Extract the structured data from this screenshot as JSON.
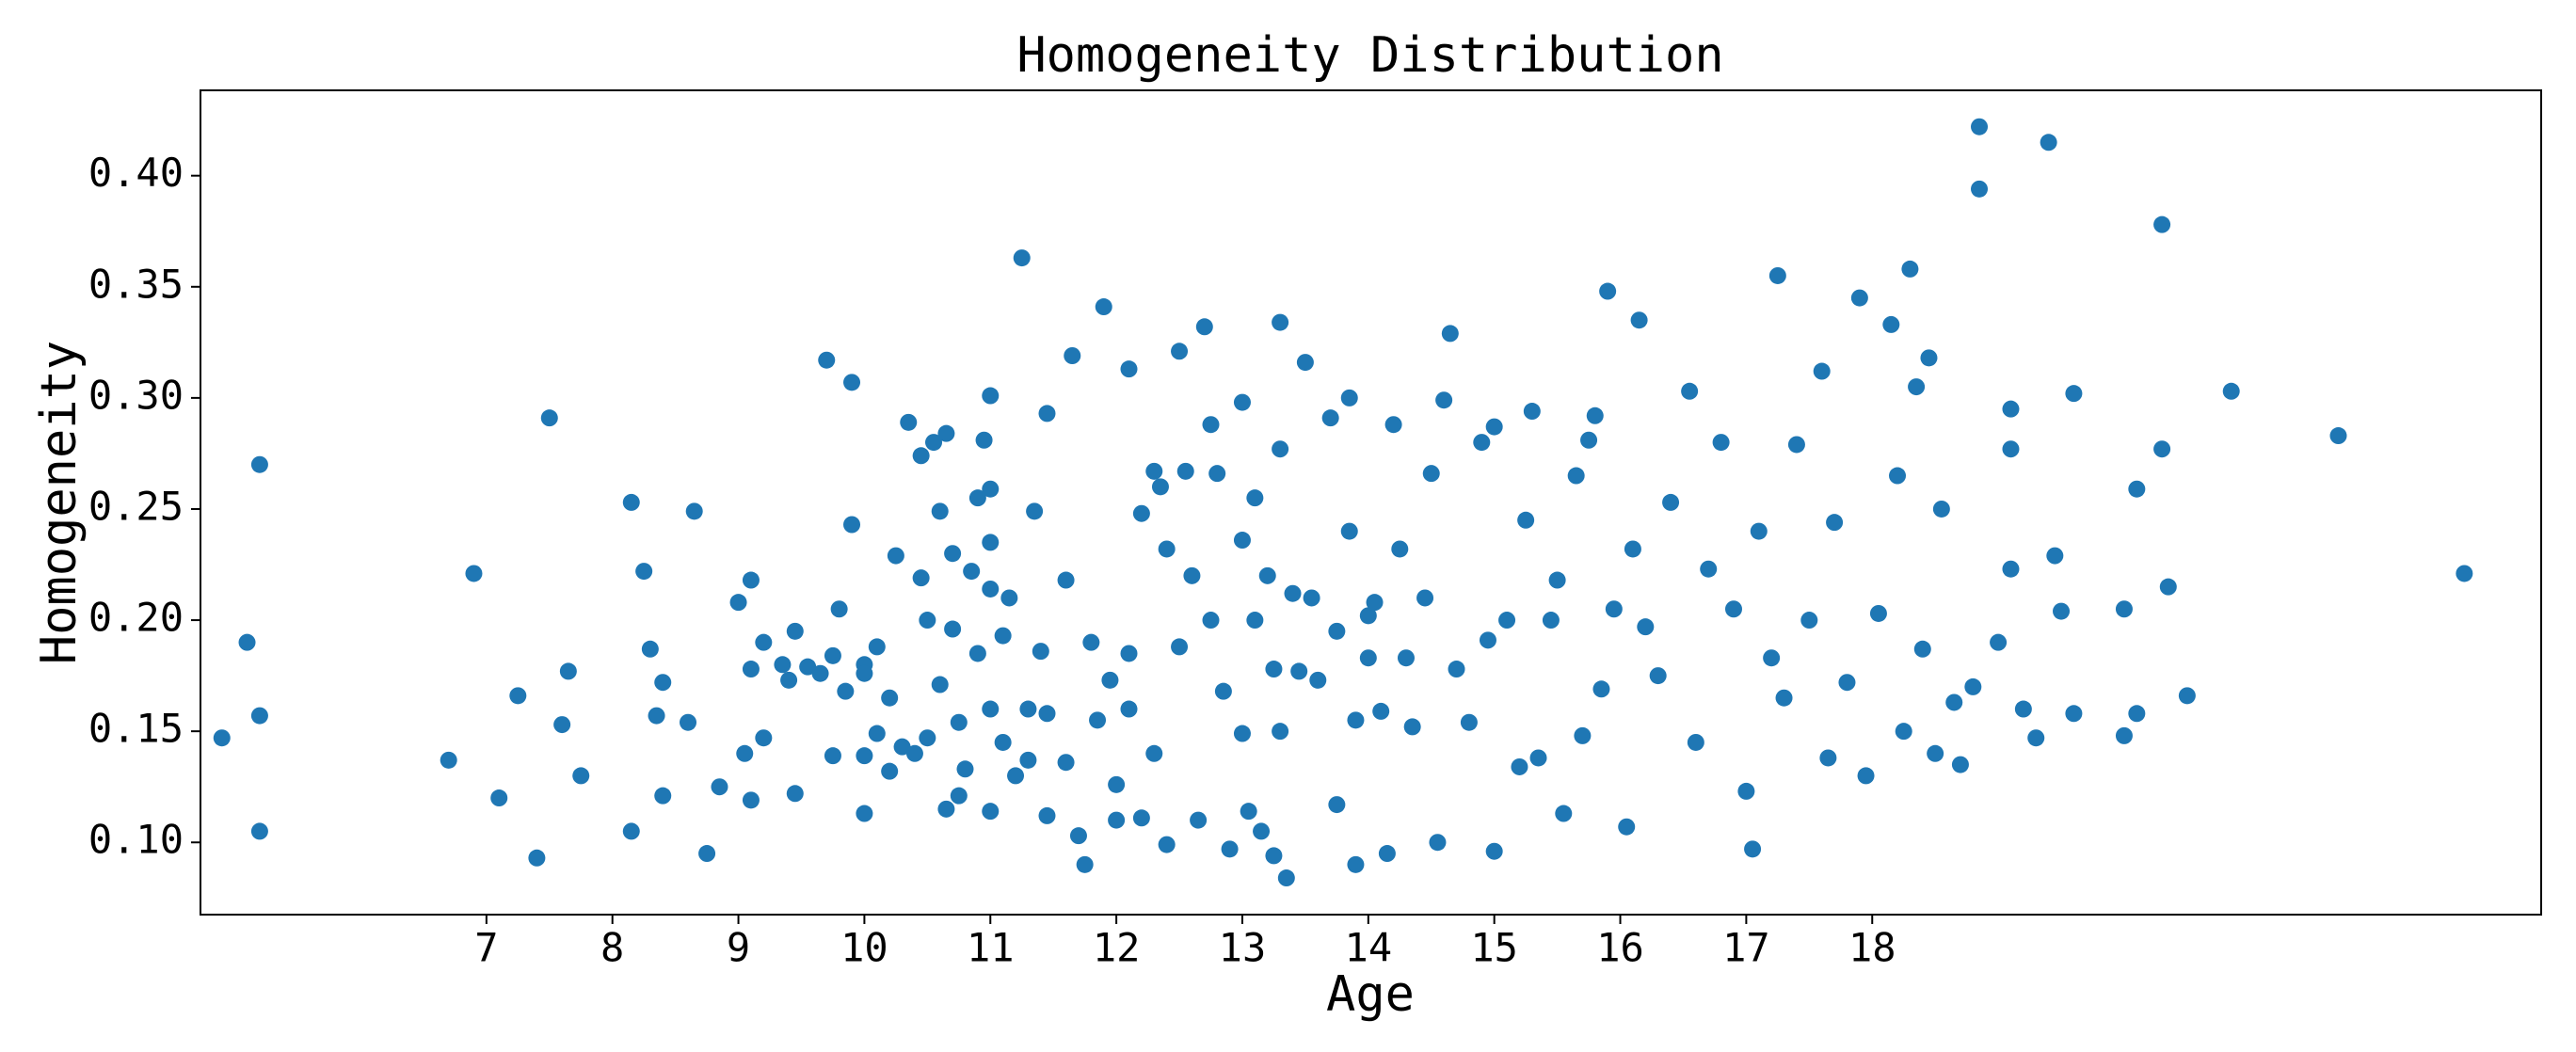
{
  "chart_data": {
    "type": "scatter",
    "title": "Homogeneity Distribution",
    "x_label": "Age",
    "y_label": "Homogeneity",
    "color": "#1f77b4",
    "xlim": [
      4.73,
      23.31
    ],
    "ylim": [
      0.0675,
      0.4384
    ],
    "xticks": [
      7,
      8,
      9,
      10,
      11,
      12,
      13,
      14,
      15,
      16,
      17,
      18
    ],
    "yticks": [
      {
        "value": 0.1,
        "label": "0.10"
      },
      0.15,
      {
        "value": 0.2,
        "label": "0.20"
      },
      0.25,
      {
        "value": 0.3,
        "label": "0.30"
      },
      0.35,
      {
        "value": 0.4,
        "label": "0.40"
      }
    ],
    "x": [
      4.9,
      5.1,
      5.2,
      5.2,
      5.2,
      6.7,
      6.9,
      7.1,
      7.25,
      7.4,
      7.5,
      7.6,
      7.65,
      7.75,
      8.15,
      8.15,
      8.25,
      8.3,
      8.35,
      8.4,
      8.4,
      8.6,
      8.65,
      8.75,
      8.85,
      9.0,
      9.05,
      9.1,
      9.1,
      9.1,
      9.2,
      9.2,
      9.35,
      9.4,
      9.45,
      9.45,
      9.55,
      9.65,
      9.7,
      9.75,
      9.75,
      9.8,
      9.85,
      9.9,
      9.9,
      10.0,
      10.0,
      10.0,
      10.0,
      10.1,
      10.1,
      10.2,
      10.2,
      10.25,
      10.3,
      10.35,
      10.4,
      10.45,
      10.45,
      10.5,
      10.5,
      10.55,
      10.6,
      10.6,
      10.65,
      10.65,
      10.7,
      10.7,
      10.75,
      10.75,
      10.8,
      10.85,
      10.9,
      10.9,
      10.95,
      11.0,
      11.0,
      11.0,
      11.0,
      11.0,
      11.0,
      11.1,
      11.1,
      11.15,
      11.2,
      11.25,
      11.3,
      11.3,
      11.35,
      11.4,
      11.45,
      11.45,
      11.45,
      11.6,
      11.6,
      11.65,
      11.7,
      11.75,
      11.8,
      11.85,
      11.9,
      11.95,
      12.0,
      12.0,
      12.1,
      12.1,
      12.1,
      12.2,
      12.2,
      12.3,
      12.3,
      12.35,
      12.4,
      12.4,
      12.5,
      12.5,
      12.55,
      12.6,
      12.65,
      12.7,
      12.75,
      12.75,
      12.8,
      12.85,
      12.9,
      13.0,
      13.0,
      13.0,
      13.05,
      13.1,
      13.1,
      13.15,
      13.2,
      13.25,
      13.25,
      13.3,
      13.3,
      13.3,
      13.35,
      13.4,
      13.45,
      13.5,
      13.55,
      13.6,
      13.7,
      13.75,
      13.75,
      13.85,
      13.85,
      13.9,
      13.9,
      14.0,
      14.0,
      14.05,
      14.1,
      14.15,
      14.2,
      14.25,
      14.3,
      14.35,
      14.45,
      14.5,
      14.55,
      14.6,
      14.65,
      14.7,
      14.8,
      14.9,
      14.95,
      15.0,
      15.0,
      15.1,
      15.2,
      15.25,
      15.3,
      15.35,
      15.45,
      15.5,
      15.55,
      15.65,
      15.7,
      15.75,
      15.8,
      15.85,
      15.9,
      15.95,
      16.05,
      16.1,
      16.15,
      16.2,
      16.3,
      16.4,
      16.55,
      16.6,
      16.7,
      16.8,
      16.9,
      17.0,
      17.05,
      17.1,
      17.2,
      17.25,
      17.3,
      17.4,
      17.5,
      17.6,
      17.65,
      17.7,
      17.8,
      17.9,
      17.95,
      18.05,
      18.15,
      18.2,
      18.25,
      18.3,
      18.35,
      18.4,
      18.45,
      18.5,
      18.55,
      18.65,
      18.7,
      18.8,
      18.85,
      18.85,
      19.0,
      19.1,
      19.1,
      19.1,
      19.2,
      19.3,
      19.4,
      19.45,
      19.5,
      19.6,
      19.6,
      20.0,
      20.0,
      20.1,
      20.1,
      20.3,
      20.3,
      20.35,
      20.5,
      20.85,
      21.7,
      22.7
    ],
    "values": [
      0.147,
      0.19,
      0.27,
      0.157,
      0.105,
      0.137,
      0.221,
      0.12,
      0.166,
      0.093,
      0.291,
      0.153,
      0.177,
      0.13,
      0.253,
      0.105,
      0.222,
      0.187,
      0.157,
      0.121,
      0.172,
      0.154,
      0.249,
      0.095,
      0.125,
      0.208,
      0.14,
      0.218,
      0.178,
      0.119,
      0.19,
      0.147,
      0.18,
      0.173,
      0.195,
      0.122,
      0.179,
      0.176,
      0.317,
      0.184,
      0.139,
      0.205,
      0.168,
      0.307,
      0.243,
      0.18,
      0.176,
      0.139,
      0.113,
      0.188,
      0.149,
      0.165,
      0.132,
      0.229,
      0.143,
      0.289,
      0.14,
      0.274,
      0.219,
      0.2,
      0.147,
      0.28,
      0.249,
      0.171,
      0.284,
      0.115,
      0.23,
      0.196,
      0.154,
      0.121,
      0.133,
      0.222,
      0.255,
      0.185,
      0.281,
      0.301,
      0.259,
      0.235,
      0.214,
      0.16,
      0.114,
      0.193,
      0.145,
      0.21,
      0.13,
      0.363,
      0.16,
      0.137,
      0.249,
      0.186,
      0.293,
      0.158,
      0.112,
      0.218,
      0.136,
      0.319,
      0.103,
      0.09,
      0.19,
      0.155,
      0.341,
      0.173,
      0.126,
      0.11,
      0.313,
      0.185,
      0.16,
      0.248,
      0.111,
      0.267,
      0.14,
      0.26,
      0.232,
      0.099,
      0.321,
      0.188,
      0.267,
      0.22,
      0.11,
      0.332,
      0.288,
      0.2,
      0.266,
      0.168,
      0.097,
      0.298,
      0.236,
      0.149,
      0.114,
      0.255,
      0.2,
      0.105,
      0.22,
      0.178,
      0.094,
      0.334,
      0.277,
      0.15,
      0.084,
      0.212,
      0.177,
      0.316,
      0.21,
      0.173,
      0.291,
      0.195,
      0.117,
      0.3,
      0.24,
      0.155,
      0.09,
      0.202,
      0.183,
      0.208,
      0.159,
      0.095,
      0.288,
      0.232,
      0.183,
      0.152,
      0.21,
      0.266,
      0.1,
      0.299,
      0.329,
      0.178,
      0.154,
      0.28,
      0.191,
      0.287,
      0.096,
      0.2,
      0.134,
      0.245,
      0.294,
      0.138,
      0.2,
      0.218,
      0.113,
      0.265,
      0.148,
      0.281,
      0.292,
      0.169,
      0.348,
      0.205,
      0.107,
      0.232,
      0.335,
      0.197,
      0.175,
      0.253,
      0.303,
      0.145,
      0.223,
      0.28,
      0.205,
      0.123,
      0.097,
      0.24,
      0.183,
      0.355,
      0.165,
      0.279,
      0.2,
      0.312,
      0.138,
      0.244,
      0.172,
      0.345,
      0.13,
      0.203,
      0.333,
      0.265,
      0.15,
      0.358,
      0.305,
      0.187,
      0.318,
      0.14,
      0.25,
      0.163,
      0.135,
      0.17,
      0.422,
      0.394,
      0.19,
      0.223,
      0.277,
      0.295,
      0.16,
      0.147,
      0.415,
      0.229,
      0.204,
      0.302,
      0.158,
      0.205,
      0.148,
      0.259,
      0.158,
      0.378,
      0.277,
      0.215,
      0.166,
      0.303,
      0.283,
      0.221
    ]
  }
}
